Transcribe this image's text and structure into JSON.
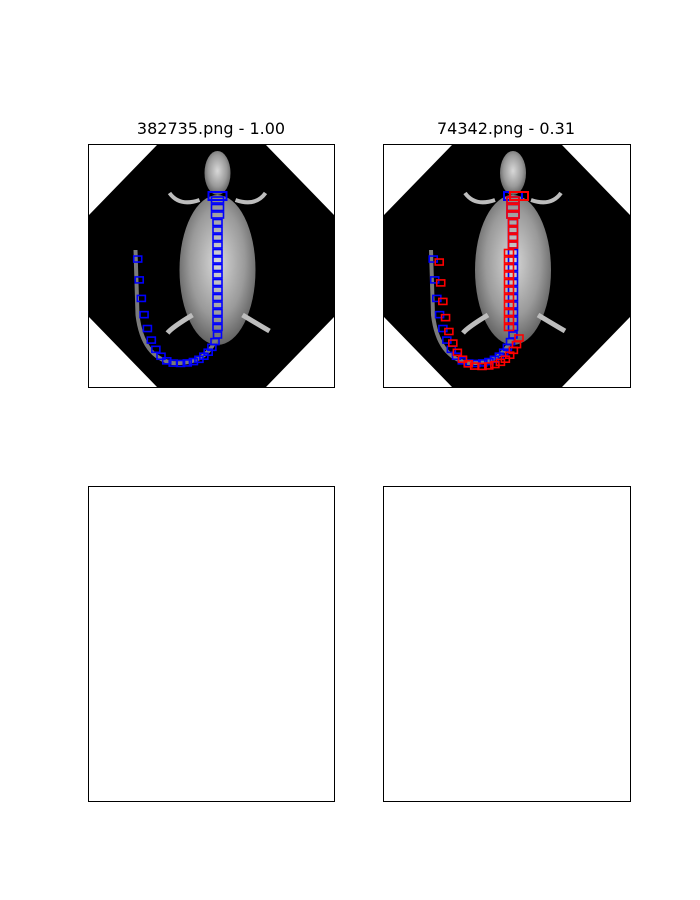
{
  "panels": [
    {
      "title": "382735.png - 1.00",
      "overlays": [
        "blue"
      ]
    },
    {
      "title": "74342.png - 0.31",
      "overlays": [
        "blue",
        "red"
      ]
    },
    {
      "title": "",
      "overlays": []
    },
    {
      "title": "",
      "overlays": []
    }
  ],
  "colors": {
    "reference_boxes": "#0000ff",
    "candidate_boxes": "#ff0000",
    "xray_background": "#000000"
  }
}
